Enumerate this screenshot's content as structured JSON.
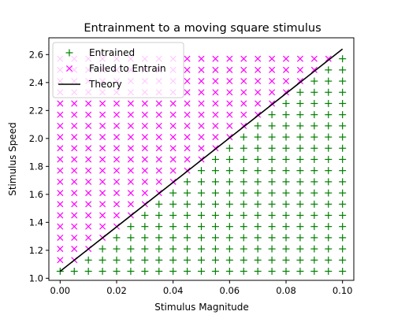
{
  "chart_data": {
    "type": "scatter",
    "title": "Entrainment to a moving square stimulus",
    "xlabel": "Stimulus Magnitude",
    "ylabel": "Stimulus Speed",
    "xlim": [
      -0.004,
      0.104
    ],
    "ylim": [
      0.985,
      2.72
    ],
    "xticks": [
      0.0,
      0.02,
      0.04,
      0.06,
      0.08,
      0.1
    ],
    "xtick_labels": [
      "0.00",
      "0.02",
      "0.04",
      "0.06",
      "0.08",
      "0.10"
    ],
    "yticks": [
      1.0,
      1.2,
      1.4,
      1.6,
      1.8,
      2.0,
      2.2,
      2.4,
      2.6
    ],
    "ytick_labels": [
      "1.0",
      "1.2",
      "1.4",
      "1.6",
      "1.8",
      "2.0",
      "2.2",
      "2.4",
      "2.6"
    ],
    "grid": false,
    "legend_position": "upper left",
    "grid_x": [
      0.0,
      0.005,
      0.01,
      0.015,
      0.02,
      0.025,
      0.03,
      0.035,
      0.04,
      0.045,
      0.05,
      0.055,
      0.06,
      0.065,
      0.07,
      0.075,
      0.08,
      0.085,
      0.09,
      0.095,
      0.1
    ],
    "grid_y": [
      1.05,
      1.13,
      1.21,
      1.29,
      1.37,
      1.45,
      1.53,
      1.61,
      1.69,
      1.77,
      1.85,
      1.93,
      2.01,
      2.09,
      2.17,
      2.25,
      2.33,
      2.41,
      2.49,
      2.57
    ],
    "series": [
      {
        "name": "Entrained",
        "marker": "+",
        "color": "#008000",
        "rule": "grid point entrained when speed is below the theory line (approximate reading)"
      },
      {
        "name": "Failed to Entrain",
        "marker": "x",
        "color": "#ff00ff",
        "rule": "grid point failed to entrain when speed is above the theory line (approximate reading)"
      },
      {
        "name": "Theory",
        "marker": "line",
        "color": "#000000",
        "x": [
          0.0,
          0.1
        ],
        "y": [
          1.05,
          2.64
        ]
      }
    ]
  }
}
